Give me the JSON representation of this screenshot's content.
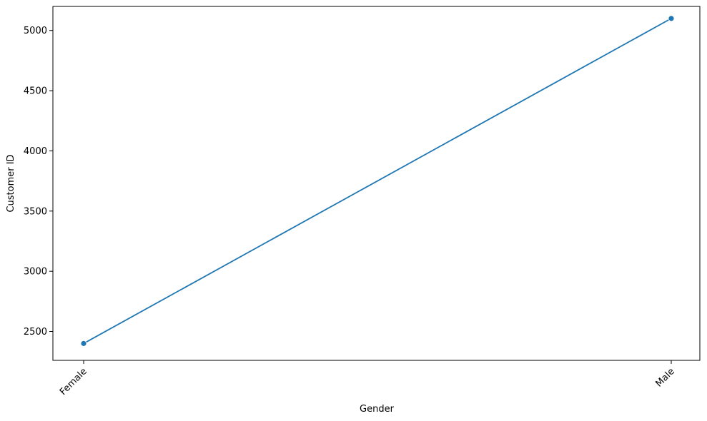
{
  "chart_data": {
    "type": "line",
    "categories": [
      "Female",
      "Male"
    ],
    "series": [
      {
        "values": [
          2400,
          5100
        ],
        "color": "#1f77b4",
        "marker": "circle"
      }
    ],
    "xlabel": "Gender",
    "ylabel": "Customer ID",
    "ylim": [
      2260,
      5200
    ],
    "yticks": [
      2500,
      3000,
      3500,
      4000,
      4500,
      5000
    ],
    "ytick_labels": [
      "2500",
      "3000",
      "3500",
      "4000",
      "4500",
      "5000"
    ],
    "xtick_rotation_deg": 45,
    "grid": false,
    "legend": "none"
  }
}
